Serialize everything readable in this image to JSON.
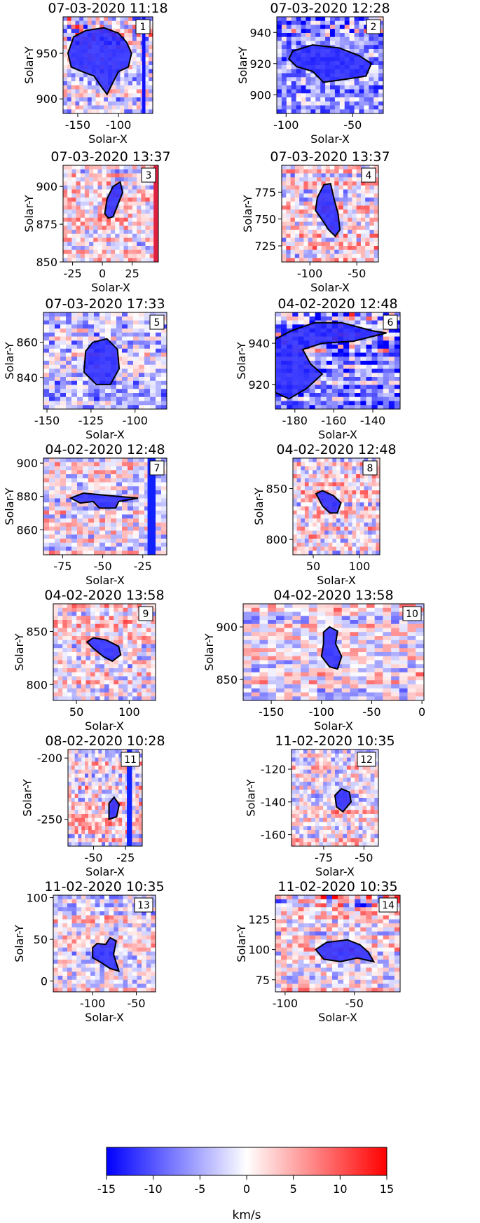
{
  "colormap": {
    "negative": "#0000ff",
    "zero": "#ffffff",
    "positive": "#ff0000",
    "range": [
      -15,
      15
    ],
    "ticks": [
      "-15",
      "-10",
      "-5",
      "0",
      "5",
      "10",
      "15"
    ],
    "label": "km/s"
  },
  "chart_data": [
    {
      "type": "heatmap",
      "id": "1",
      "title": "07-03-2020 11:18",
      "xlabel": "Solar-X",
      "ylabel": "Solar-Y",
      "xlim": [
        -168,
        -58
      ],
      "ylim": [
        884,
        990
      ],
      "xticks": [
        "-150",
        "-100"
      ],
      "xtick_vals": [
        -150,
        -100
      ],
      "yticks": [
        "900",
        "950"
      ],
      "ytick_vals": [
        900,
        950
      ],
      "bias": -0.15,
      "bandY": [
        958,
        990
      ],
      "stripeX": [
        -71,
        -67
      ],
      "stripeColor": "#1010ff",
      "contour": [
        [
          -155,
          968
        ],
        [
          -140,
          975
        ],
        [
          -118,
          978
        ],
        [
          -100,
          972
        ],
        [
          -90,
          962
        ],
        [
          -84,
          950
        ],
        [
          -88,
          935
        ],
        [
          -100,
          930
        ],
        [
          -108,
          916
        ],
        [
          -114,
          905
        ],
        [
          -120,
          912
        ],
        [
          -130,
          925
        ],
        [
          -145,
          930
        ],
        [
          -158,
          935
        ],
        [
          -162,
          950
        ]
      ]
    },
    {
      "type": "heatmap",
      "id": "2",
      "title": "07-03-2020 12:28",
      "xlabel": "Solar-X",
      "ylabel": "Solar-Y",
      "xlim": [
        -107,
        -27
      ],
      "ylim": [
        888,
        950
      ],
      "xticks": [
        "-100",
        "-50"
      ],
      "xtick_vals": [
        -100,
        -50
      ],
      "yticks": [
        "900",
        "920",
        "940"
      ],
      "ytick_vals": [
        900,
        920,
        940
      ],
      "bias": -0.35,
      "bandY": [
        938,
        950
      ],
      "contour": [
        [
          -95,
          928
        ],
        [
          -80,
          932
        ],
        [
          -60,
          930
        ],
        [
          -45,
          925
        ],
        [
          -36,
          920
        ],
        [
          -40,
          912
        ],
        [
          -55,
          910
        ],
        [
          -72,
          908
        ],
        [
          -80,
          915
        ],
        [
          -92,
          918
        ],
        [
          -98,
          923
        ]
      ]
    },
    {
      "type": "heatmap",
      "id": "3",
      "title": "07-03-2020 13:37",
      "xlabel": "Solar-X",
      "ylabel": "Solar-Y",
      "xlim": [
        -33,
        47
      ],
      "ylim": [
        850,
        914
      ],
      "xticks": [
        "-25",
        "0",
        "25"
      ],
      "xtick_vals": [
        -25,
        0,
        25
      ],
      "yticks": [
        "850",
        "875",
        "900"
      ],
      "ytick_vals": [
        850,
        875,
        900
      ],
      "bias": 0.05,
      "stripeX": [
        43,
        47
      ],
      "stripeColor": "#e02040",
      "contour": [
        [
          2,
          882
        ],
        [
          4,
          892
        ],
        [
          9,
          900
        ],
        [
          15,
          903
        ],
        [
          17,
          896
        ],
        [
          13,
          888
        ],
        [
          9,
          880
        ],
        [
          5,
          879
        ]
      ]
    },
    {
      "type": "heatmap",
      "id": "4",
      "title": "07-03-2020 13:37",
      "xlabel": "Solar-X",
      "ylabel": "Solar-Y",
      "xlim": [
        -130,
        -27
      ],
      "ylim": [
        710,
        800
      ],
      "xticks": [
        "-100",
        "-50"
      ],
      "xtick_vals": [
        -100,
        -50
      ],
      "yticks": [
        "725",
        "750",
        "775"
      ],
      "ytick_vals": [
        725,
        750,
        775
      ],
      "bias": 0.05,
      "contour": [
        [
          -92,
          770
        ],
        [
          -85,
          782
        ],
        [
          -78,
          783
        ],
        [
          -74,
          768
        ],
        [
          -70,
          755
        ],
        [
          -68,
          740
        ],
        [
          -73,
          734
        ],
        [
          -80,
          740
        ],
        [
          -86,
          748
        ],
        [
          -94,
          758
        ]
      ]
    },
    {
      "type": "heatmap",
      "id": "5",
      "title": "07-03-2020 17:33",
      "xlabel": "Solar-X",
      "ylabel": "Solar-Y",
      "xlim": [
        -152,
        -82
      ],
      "ylim": [
        822,
        877
      ],
      "xticks": [
        "-150",
        "-125",
        "-100"
      ],
      "xtick_vals": [
        -150,
        -125,
        -100
      ],
      "yticks": [
        "840",
        "860"
      ],
      "ytick_vals": [
        840,
        860
      ],
      "bias": -0.2,
      "contour": [
        [
          -128,
          855
        ],
        [
          -124,
          860
        ],
        [
          -116,
          862
        ],
        [
          -110,
          856
        ],
        [
          -109,
          845
        ],
        [
          -114,
          836
        ],
        [
          -122,
          836
        ],
        [
          -129,
          843
        ]
      ]
    },
    {
      "type": "heatmap",
      "id": "6",
      "title": "04-02-2020 12:48",
      "xlabel": "Solar-X",
      "ylabel": "Solar-Y",
      "xlim": [
        -190,
        -126
      ],
      "ylim": [
        908,
        955
      ],
      "xticks": [
        "-180",
        "-160",
        "-140"
      ],
      "xtick_vals": [
        -180,
        -160,
        -140
      ],
      "yticks": [
        "920",
        "940"
      ],
      "ytick_vals": [
        920,
        940
      ],
      "bias": -0.4,
      "bandY": [
        936,
        955
      ],
      "contour": [
        [
          -190,
          942
        ],
        [
          -182,
          946
        ],
        [
          -170,
          950
        ],
        [
          -156,
          950
        ],
        [
          -140,
          946
        ],
        [
          -133,
          945
        ],
        [
          -150,
          941
        ],
        [
          -166,
          940
        ],
        [
          -176,
          937
        ],
        [
          -172,
          930
        ],
        [
          -166,
          925
        ],
        [
          -174,
          918
        ],
        [
          -183,
          913
        ],
        [
          -190,
          916
        ]
      ]
    },
    {
      "type": "heatmap",
      "id": "7",
      "title": "04-02-2020 12:48",
      "xlabel": "Solar-X",
      "ylabel": "Solar-Y",
      "xlim": [
        -87,
        -10
      ],
      "ylim": [
        845,
        903
      ],
      "xticks": [
        "-75",
        "-50",
        "-25"
      ],
      "xtick_vals": [
        -75,
        -50,
        -25
      ],
      "yticks": [
        "860",
        "880",
        "900"
      ],
      "ytick_vals": [
        860,
        880,
        900
      ],
      "bias": 0.0,
      "stripeX": [
        -22,
        -17
      ],
      "stripeColor": "#1020ff",
      "contour": [
        [
          -70,
          879
        ],
        [
          -62,
          882
        ],
        [
          -52,
          881
        ],
        [
          -40,
          880
        ],
        [
          -28,
          879
        ],
        [
          -40,
          877
        ],
        [
          -42,
          873
        ],
        [
          -52,
          873
        ],
        [
          -56,
          877
        ],
        [
          -64,
          876
        ]
      ]
    },
    {
      "type": "heatmap",
      "id": "8",
      "title": "04-02-2020 12:48",
      "xlabel": "Solar-X",
      "ylabel": "Solar-Y",
      "xlim": [
        28,
        122
      ],
      "ylim": [
        785,
        880
      ],
      "xticks": [
        "50",
        "100"
      ],
      "xtick_vals": [
        50,
        100
      ],
      "yticks": [
        "800",
        "850"
      ],
      "ytick_vals": [
        800,
        850
      ],
      "bias": 0.05,
      "contour": [
        [
          53,
          845
        ],
        [
          60,
          848
        ],
        [
          72,
          843
        ],
        [
          80,
          836
        ],
        [
          76,
          826
        ],
        [
          68,
          826
        ],
        [
          60,
          833
        ]
      ]
    },
    {
      "type": "heatmap",
      "id": "9",
      "title": "04-02-2020 13:58",
      "xlabel": "Solar-X",
      "ylabel": "Solar-Y",
      "xlim": [
        28,
        125
      ],
      "ylim": [
        785,
        876
      ],
      "xticks": [
        "50",
        "100"
      ],
      "xtick_vals": [
        50,
        100
      ],
      "yticks": [
        "800",
        "850"
      ],
      "ytick_vals": [
        800,
        850
      ],
      "bias": 0.05,
      "contour": [
        [
          60,
          840
        ],
        [
          66,
          844
        ],
        [
          78,
          842
        ],
        [
          90,
          836
        ],
        [
          92,
          828
        ],
        [
          84,
          822
        ],
        [
          76,
          826
        ],
        [
          66,
          834
        ]
      ]
    },
    {
      "type": "heatmap",
      "id": "10",
      "title": "04-02-2020 13:58",
      "xlabel": "Solar-X",
      "ylabel": "Solar-Y",
      "xlim": [
        -178,
        2
      ],
      "ylim": [
        830,
        922
      ],
      "xticks": [
        "-150",
        "-100",
        "-50",
        "0"
      ],
      "xtick_vals": [
        -150,
        -100,
        -50,
        0
      ],
      "yticks": [
        "850",
        "900"
      ],
      "ytick_vals": [
        850,
        900
      ],
      "bias": 0.0,
      "contour": [
        [
          -98,
          895
        ],
        [
          -92,
          900
        ],
        [
          -84,
          896
        ],
        [
          -86,
          884
        ],
        [
          -80,
          872
        ],
        [
          -84,
          860
        ],
        [
          -92,
          862
        ],
        [
          -100,
          872
        ],
        [
          -98,
          884
        ]
      ]
    },
    {
      "type": "heatmap",
      "id": "11",
      "title": "08-02-2020 10:28",
      "xlabel": "Solar-X",
      "ylabel": "Solar-Y",
      "xlim": [
        -70,
        -12
      ],
      "ylim": [
        -272,
        -193
      ],
      "xticks": [
        "-50",
        "-25"
      ],
      "xtick_vals": [
        -50,
        -25
      ],
      "yticks": [
        "-250",
        "-200"
      ],
      "ytick_vals": [
        -250,
        -200
      ],
      "bias": 0.05,
      "stripeX": [
        -24,
        -20
      ],
      "stripeColor": "#1020ff",
      "contour": [
        [
          -38,
          -237
        ],
        [
          -34,
          -232
        ],
        [
          -30,
          -238
        ],
        [
          -32,
          -248
        ],
        [
          -38,
          -250
        ]
      ]
    },
    {
      "type": "heatmap",
      "id": "12",
      "title": "11-02-2020 10:35",
      "xlabel": "Solar-X",
      "ylabel": "Solar-Y",
      "xlim": [
        -95,
        -41
      ],
      "ylim": [
        -167,
        -108
      ],
      "xticks": [
        "-75",
        "-50"
      ],
      "xtick_vals": [
        -75,
        -50
      ],
      "yticks": [
        "-160",
        "-140",
        "-120"
      ],
      "ytick_vals": [
        -160,
        -140,
        -120
      ],
      "bias": 0.1,
      "contour": [
        [
          -68,
          -136
        ],
        [
          -64,
          -132
        ],
        [
          -59,
          -134
        ],
        [
          -58,
          -140
        ],
        [
          -63,
          -146
        ],
        [
          -67,
          -143
        ]
      ]
    },
    {
      "type": "heatmap",
      "id": "13",
      "title": "11-02-2020 10:35",
      "xlabel": "Solar-X",
      "ylabel": "Solar-Y",
      "xlim": [
        -145,
        -28
      ],
      "ylim": [
        -13,
        103
      ],
      "xticks": [
        "-100",
        "-50"
      ],
      "xtick_vals": [
        -100,
        -50
      ],
      "yticks": [
        "0",
        "50",
        "100"
      ],
      "ytick_vals": [
        0,
        50,
        100
      ],
      "bias": -0.05,
      "contour": [
        [
          -100,
          40
        ],
        [
          -95,
          45
        ],
        [
          -85,
          44
        ],
        [
          -80,
          52
        ],
        [
          -73,
          48
        ],
        [
          -76,
          32
        ],
        [
          -70,
          12
        ],
        [
          -80,
          15
        ],
        [
          -90,
          22
        ],
        [
          -100,
          28
        ]
      ]
    },
    {
      "type": "heatmap",
      "id": "14",
      "title": "11-02-2020 10:35",
      "xlabel": "Solar-X",
      "ylabel": "Solar-Y",
      "xlim": [
        -107,
        -17
      ],
      "ylim": [
        65,
        145
      ],
      "xticks": [
        "-100",
        "-50"
      ],
      "xtick_vals": [
        -100,
        -50
      ],
      "yticks": [
        "75",
        "100",
        "125"
      ],
      "ytick_vals": [
        75,
        100,
        125
      ],
      "bias": 0.05,
      "bandY": [
        135,
        145
      ],
      "contour": [
        [
          -78,
          100
        ],
        [
          -70,
          106
        ],
        [
          -55,
          108
        ],
        [
          -46,
          104
        ],
        [
          -40,
          98
        ],
        [
          -36,
          90
        ],
        [
          -48,
          93
        ],
        [
          -60,
          90
        ],
        [
          -72,
          92
        ]
      ]
    }
  ]
}
